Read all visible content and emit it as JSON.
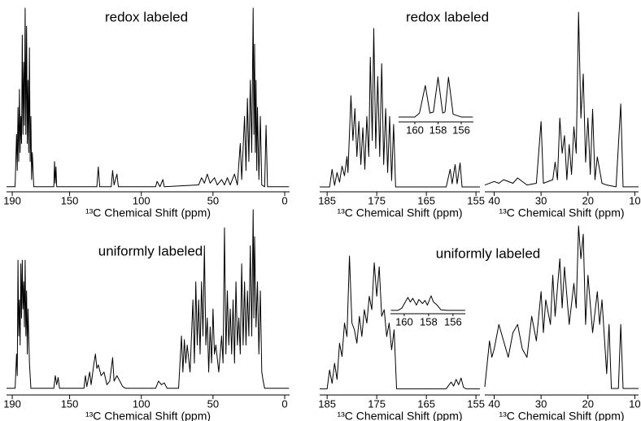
{
  "chart_data": [
    {
      "type": "line",
      "title": "redox labeled",
      "xlabel": "¹³C Chemical Shift (ppm)",
      "xlim": [
        194,
        -3.4
      ],
      "ylim": [
        0,
        100
      ],
      "xticks": [
        190,
        150,
        100,
        50,
        0
      ],
      "color": "#000000",
      "x": [
        194,
        188,
        187,
        186.5,
        186,
        185.5,
        185,
        184.5,
        184,
        183.5,
        183,
        182.5,
        182,
        181.5,
        181,
        180.5,
        180,
        179.5,
        179,
        178.5,
        178,
        177.5,
        177,
        176.5,
        176,
        175,
        161,
        160.5,
        160,
        159.5,
        159,
        131,
        130,
        129,
        121,
        120,
        119,
        117,
        116,
        90,
        89,
        87,
        85,
        84,
        60,
        58,
        56,
        54,
        52,
        49,
        47,
        44,
        42,
        40,
        38,
        35,
        33,
        31,
        30,
        28,
        27,
        26,
        25,
        24,
        23,
        22,
        21.5,
        21,
        20.5,
        20,
        19.5,
        19,
        18,
        17,
        16,
        14,
        13,
        12,
        -3
      ],
      "values": [
        1,
        1,
        30,
        10,
        45,
        15,
        55,
        20,
        40,
        25,
        85,
        30,
        70,
        35,
        100,
        30,
        90,
        25,
        60,
        20,
        78,
        15,
        40,
        5,
        20,
        1,
        1,
        15,
        3,
        12,
        1,
        1,
        12,
        1,
        1,
        10,
        2,
        8,
        1,
        1,
        4,
        1,
        5,
        1,
        2,
        6,
        3,
        8,
        3,
        6,
        2,
        5,
        2,
        6,
        2,
        8,
        2,
        25,
        5,
        40,
        10,
        50,
        15,
        60,
        20,
        100,
        30,
        80,
        20,
        60,
        10,
        45,
        5,
        40,
        2,
        1,
        35,
        1,
        1
      ]
    },
    {
      "type": "line",
      "title": "redox labeled",
      "xlabel": "¹³C Chemical Shift (ppm)",
      "xlim": [
        186.5,
        154.2
      ],
      "ylim": [
        0,
        100
      ],
      "xticks": [
        185,
        175,
        165,
        155
      ],
      "color": "#000000",
      "x": [
        186.5,
        184.5,
        184,
        183.5,
        183,
        182.5,
        182,
        181.5,
        181,
        180.8,
        180.2,
        179.8,
        179.4,
        179,
        178.6,
        178.2,
        177.8,
        177.4,
        177,
        176.6,
        176.3,
        175.9,
        175.6,
        175.2,
        174.8,
        174.4,
        174,
        173.6,
        173.2,
        172.8,
        172.4,
        172,
        171.6,
        171.2,
        161,
        160.2,
        159.8,
        159.2,
        158.8,
        158.2,
        157.8,
        154.2
      ],
      "values": [
        1,
        1,
        12,
        2,
        10,
        4,
        14,
        8,
        20,
        10,
        58,
        30,
        50,
        20,
        42,
        15,
        38,
        12,
        45,
        20,
        82,
        30,
        100,
        25,
        70,
        20,
        78,
        15,
        50,
        10,
        45,
        5,
        40,
        1,
        1,
        12,
        3,
        15,
        3,
        16,
        1,
        1
      ]
    },
    {
      "type": "line",
      "xlim": [
        161.4,
        154.95
      ],
      "ylim": [
        0,
        100
      ],
      "xticks": [
        160,
        158,
        156
      ],
      "color": "#000000",
      "x": [
        161.4,
        160,
        159.6,
        159.1,
        158.7,
        158.4,
        158,
        157.6,
        157.4,
        157.1,
        156.7,
        156,
        155
      ],
      "values": [
        3,
        3,
        10,
        60,
        10,
        12,
        75,
        10,
        12,
        75,
        8,
        3,
        3
      ]
    },
    {
      "type": "line",
      "xlabel": "¹³C Chemical Shift (ppm)",
      "xlim": [
        42,
        9.2
      ],
      "ylim": [
        0,
        100
      ],
      "xticks": [
        40,
        30,
        20,
        10
      ],
      "color": "#000000",
      "x": [
        42,
        40,
        39,
        38,
        36,
        35,
        33,
        31,
        30,
        29.5,
        27.5,
        27,
        26.5,
        26,
        25.5,
        25,
        24.5,
        24,
        23.5,
        23,
        22.5,
        22,
        21.5,
        21,
        20.5,
        20,
        19.5,
        19,
        18.5,
        18,
        17,
        16,
        14,
        13,
        12.5,
        9.2
      ],
      "values": [
        2,
        4,
        3,
        5,
        3,
        6,
        2,
        3,
        38,
        3,
        5,
        15,
        5,
        40,
        20,
        30,
        5,
        25,
        8,
        35,
        20,
        100,
        40,
        65,
        15,
        40,
        8,
        45,
        5,
        18,
        3,
        2,
        1,
        48,
        1,
        1
      ]
    },
    {
      "type": "line",
      "title": "uniformly labeled",
      "xlabel": "¹³C Chemical Shift (ppm)",
      "xlim": [
        194,
        -3.4
      ],
      "ylim": [
        0,
        100
      ],
      "xticks": [
        190,
        150,
        100,
        50,
        0
      ],
      "color": "#000000",
      "x": [
        194,
        188,
        187,
        186.5,
        186,
        185.5,
        185,
        184.5,
        184,
        183.5,
        183,
        182.5,
        182,
        181.5,
        181,
        180.5,
        180,
        179.5,
        179,
        178,
        177,
        161,
        160,
        159,
        158,
        157,
        140,
        139,
        138,
        136,
        135,
        133,
        132,
        131,
        130,
        128,
        126,
        124,
        122,
        120,
        119,
        117,
        115,
        113,
        111,
        90,
        88,
        86,
        84,
        82,
        74,
        72,
        71,
        70,
        69,
        68,
        66,
        64,
        63,
        62,
        61,
        60,
        59,
        58,
        57,
        56,
        55,
        54,
        53,
        52,
        51,
        50,
        49,
        48,
        46,
        44,
        43,
        42,
        41,
        40,
        39,
        38,
        37,
        36,
        35,
        34,
        33,
        32,
        31,
        30,
        29,
        28,
        27,
        26,
        25,
        24,
        23,
        22,
        21.5,
        21,
        20,
        19,
        18,
        17,
        16,
        15,
        14,
        -3
      ],
      "values": [
        1,
        1,
        20,
        8,
        72,
        30,
        50,
        25,
        70,
        40,
        72,
        45,
        60,
        35,
        72,
        30,
        55,
        20,
        45,
        15,
        1,
        1,
        8,
        3,
        7,
        1,
        1,
        8,
        2,
        10,
        3,
        15,
        20,
        12,
        14,
        8,
        10,
        3,
        5,
        18,
        5,
        8,
        5,
        2,
        1,
        1,
        5,
        3,
        4,
        1,
        1,
        30,
        10,
        28,
        15,
        25,
        10,
        50,
        15,
        60,
        25,
        50,
        20,
        60,
        30,
        80,
        25,
        40,
        10,
        35,
        15,
        45,
        20,
        25,
        10,
        30,
        15,
        90,
        20,
        55,
        25,
        45,
        20,
        50,
        15,
        60,
        25,
        40,
        20,
        70,
        25,
        60,
        25,
        55,
        30,
        80,
        30,
        100,
        40,
        85,
        35,
        60,
        20,
        55,
        10,
        5,
        1,
        1
      ]
    },
    {
      "type": "line",
      "title": "uniformly labeled",
      "xlabel": "¹³C Chemical Shift (ppm)",
      "xlim": [
        186.5,
        154.2
      ],
      "ylim": [
        0,
        100
      ],
      "xticks": [
        185,
        175,
        165,
        155
      ],
      "color": "#000000",
      "x": [
        186.5,
        185,
        184.5,
        184,
        183.5,
        183,
        182.5,
        182,
        181.5,
        181,
        180.5,
        180,
        179.5,
        179,
        178.5,
        178,
        177.5,
        177,
        176.5,
        176,
        175.5,
        175,
        174.5,
        174,
        173.5,
        173,
        172.5,
        172,
        171.5,
        171,
        161,
        160,
        159.5,
        159,
        158.5,
        158,
        157.5,
        157,
        154.2
      ],
      "values": [
        1,
        1,
        15,
        5,
        20,
        8,
        35,
        25,
        50,
        40,
        100,
        50,
        45,
        35,
        55,
        40,
        60,
        50,
        70,
        60,
        95,
        70,
        92,
        55,
        60,
        40,
        50,
        30,
        45,
        1,
        1,
        6,
        3,
        8,
        4,
        9,
        2,
        1,
        1
      ]
    },
    {
      "type": "line",
      "xlim": [
        161.13,
        154.99
      ],
      "ylim": [
        0,
        100
      ],
      "xticks": [
        160,
        158,
        156
      ],
      "color": "#000000",
      "x": [
        161.1,
        160.5,
        160.2,
        159.7,
        159.5,
        159.3,
        159,
        158.8,
        158.5,
        158.3,
        158.1,
        157.8,
        157.6,
        157.3,
        157,
        156.5,
        155
      ],
      "values": [
        3,
        3,
        10,
        45,
        30,
        42,
        20,
        38,
        25,
        35,
        20,
        50,
        30,
        20,
        5,
        3,
        3
      ]
    },
    {
      "type": "line",
      "xlabel": "¹³C Chemical Shift (ppm)",
      "xlim": [
        42,
        9.2
      ],
      "ylim": [
        0,
        100
      ],
      "xticks": [
        40,
        30,
        20,
        10
      ],
      "color": "#000000",
      "x": [
        42,
        41,
        40.5,
        40,
        39,
        38,
        37,
        36,
        35,
        34,
        33,
        32,
        31,
        30,
        29.5,
        29,
        28,
        27.5,
        27,
        26,
        25.5,
        25,
        24,
        23,
        22.5,
        22,
        21.5,
        21,
        20.5,
        20,
        19,
        18,
        17.5,
        17,
        16,
        15.5,
        15,
        13.5,
        13,
        12.5,
        9.2
      ],
      "values": [
        2,
        30,
        20,
        25,
        40,
        30,
        20,
        35,
        40,
        25,
        20,
        45,
        30,
        60,
        35,
        55,
        40,
        70,
        45,
        80,
        50,
        75,
        40,
        65,
        50,
        100,
        80,
        95,
        40,
        70,
        35,
        60,
        40,
        55,
        10,
        40,
        1,
        1,
        40,
        1,
        1
      ]
    }
  ]
}
